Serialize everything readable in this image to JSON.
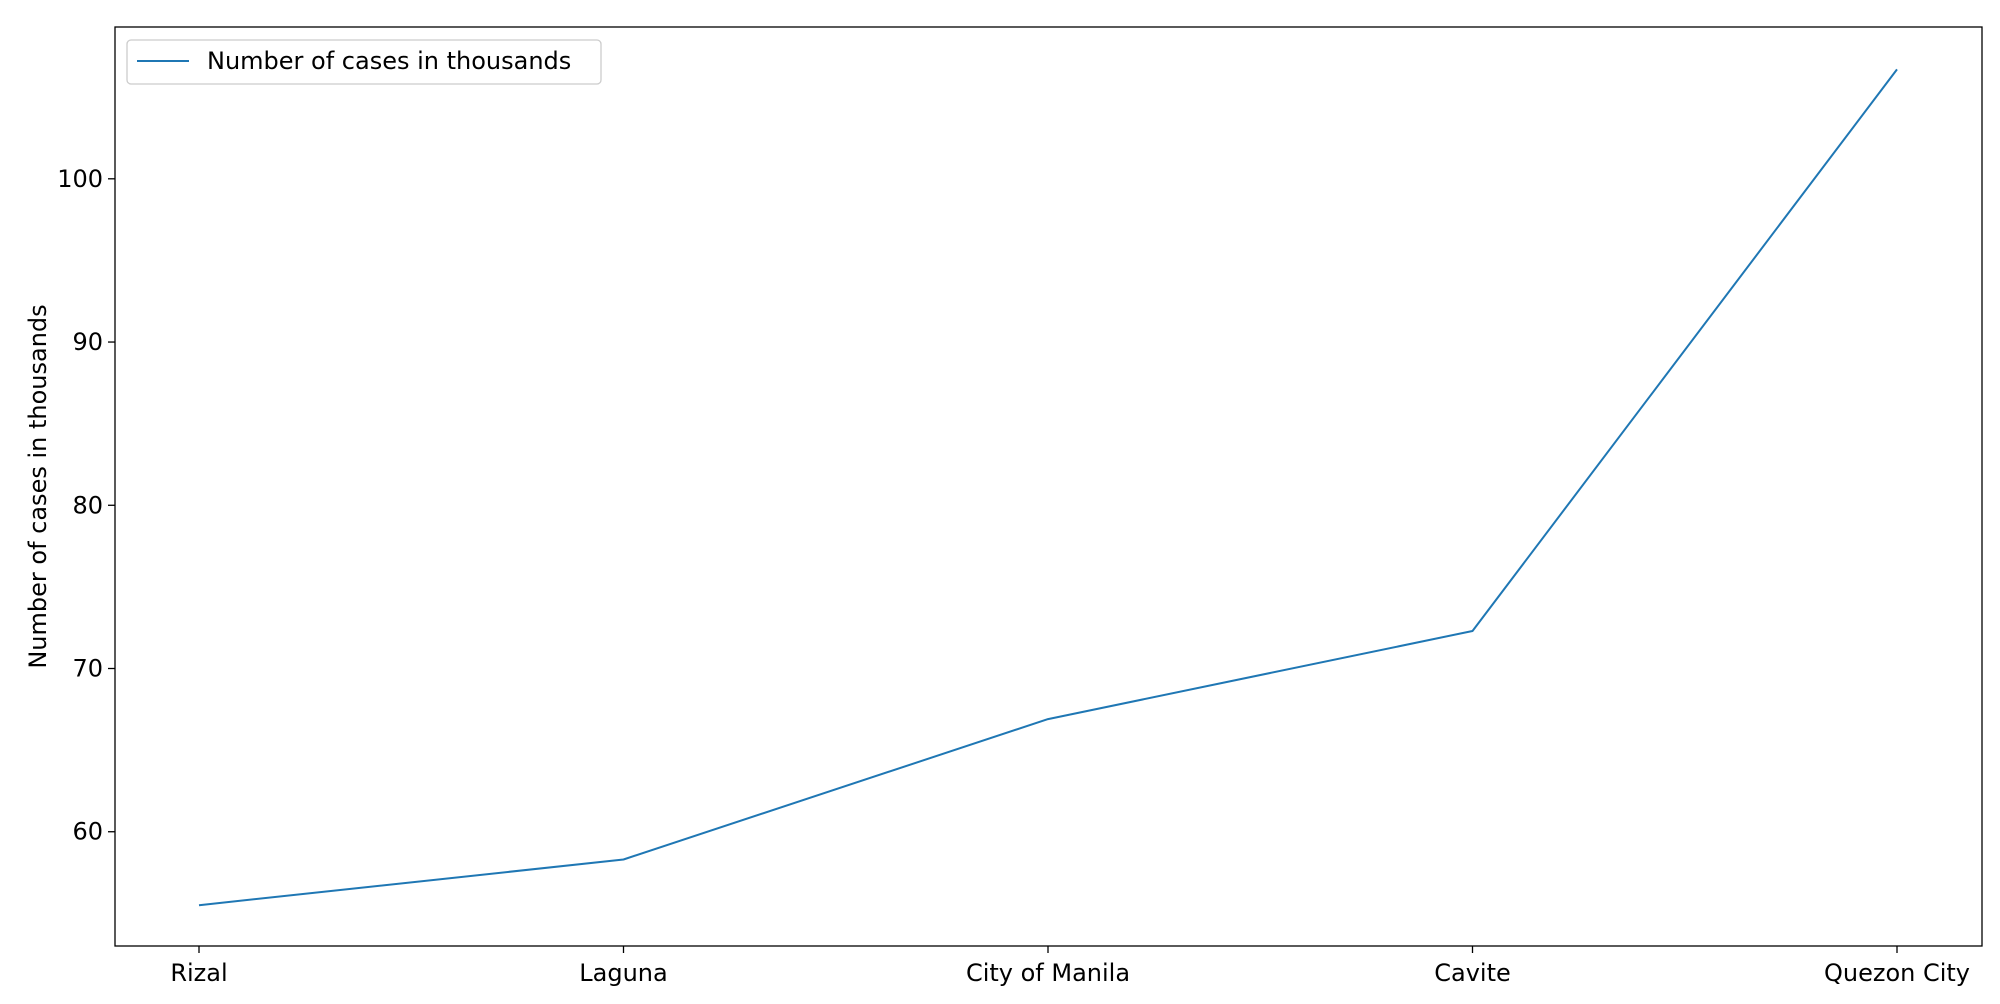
{
  "chart_data": {
    "type": "line",
    "title": "",
    "xlabel": "",
    "ylabel": "Number of cases in thousands",
    "categories": [
      "Rizal",
      "Laguna",
      "City of Manila",
      "Cavite",
      "Quezon City"
    ],
    "series": [
      {
        "name": "Number of cases in thousands",
        "values": [
          55.5,
          58.3,
          66.9,
          72.3,
          106.7
        ],
        "color": "#1f77b4"
      }
    ],
    "ylim": [
      53.0,
      109.3
    ],
    "yticks": [
      60,
      70,
      80,
      90,
      100
    ],
    "grid": false,
    "legend": "upper-left"
  }
}
